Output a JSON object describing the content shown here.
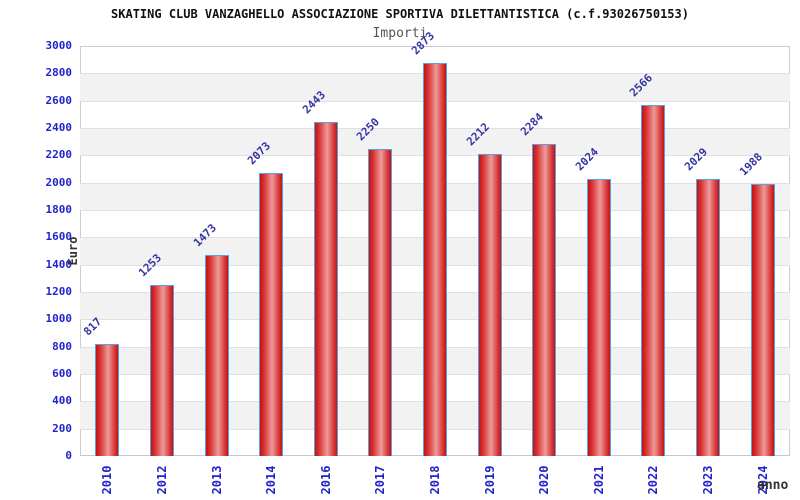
{
  "header": {
    "title": "SKATING CLUB VANZAGHELLO ASSOCIAZIONE SPORTIVA DILETTANTISTICA (c.f.93026750153)",
    "subtitle": "Importi"
  },
  "chart_data": {
    "type": "bar",
    "title": "SKATING CLUB VANZAGHELLO ASSOCIAZIONE SPORTIVA DILETTANTISTICA (c.f.93026750153)",
    "subtitle": "Importi",
    "xlabel": "anno",
    "ylabel": "Euro",
    "categories": [
      "2010",
      "2012",
      "2013",
      "2014",
      "2016",
      "2017",
      "2018",
      "2019",
      "2020",
      "2021",
      "2022",
      "2023",
      "2024"
    ],
    "values": [
      817,
      1253,
      1473,
      2073,
      2443,
      2250,
      2873,
      2212,
      2284,
      2024,
      2566,
      2029,
      1988
    ],
    "ylim": [
      0,
      3000
    ],
    "ytick_step": 200,
    "yticks": [
      0,
      200,
      400,
      600,
      800,
      1000,
      1200,
      1400,
      1600,
      1800,
      2000,
      2200,
      2400,
      2600,
      2800,
      3000
    ],
    "grid": "horizontal gridlines with alternating gray/white bands",
    "legend": "none",
    "value_labels": "above each bar, rotated 45 degrees",
    "colors": {
      "bar_fill": "#d92b2b",
      "bar_highlight": "#ec9b9b",
      "bar_border": "#58a2e2",
      "tick_text": "#2323cc",
      "value_text": "#3535a2",
      "band_gray": "#f2f2f2",
      "gridline": "#e0e0e0",
      "title_text": "#111111",
      "subtitle_text": "#555555",
      "axis_title_text": "#333333"
    }
  }
}
